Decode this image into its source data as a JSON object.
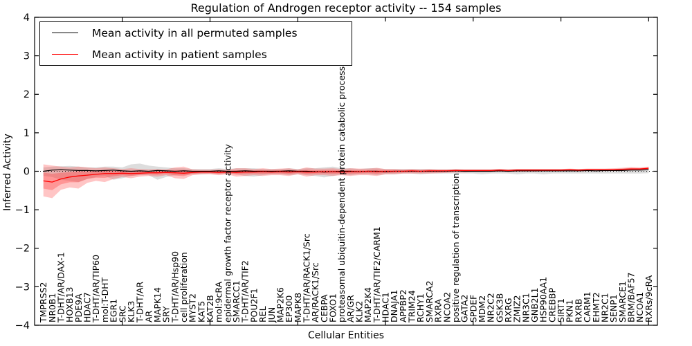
{
  "title": "Regulation of Androgen receptor activity -- 154 samples",
  "xlabel": "Cellular Entities",
  "ylabel": "Inferred Activity",
  "legend": [
    {
      "label": "Mean activity in all permuted samples",
      "color": "#000000"
    },
    {
      "label": "Mean activity in patient samples",
      "color": "#ff0000"
    }
  ],
  "y_ticks": [
    -4,
    -3,
    -2,
    -1,
    0,
    1,
    2,
    3,
    4
  ],
  "colors": {
    "permuted_line": "#000000",
    "permuted_band": "#aaaaaa",
    "patient_line": "#ff0000",
    "patient_band": "#ff4040",
    "zero_line": "#000000",
    "frame": "#000000"
  },
  "chart_data": {
    "type": "line",
    "title": "Regulation of Androgen receptor activity -- 154 samples",
    "xlabel": "Cellular Entities",
    "ylabel": "Inferred Activity",
    "ylim": [
      -4,
      4
    ],
    "grid": false,
    "legend_position": "upper left",
    "zero_reference_line": "dotted",
    "categories": [
      "TMPRSS2",
      "NR0B1",
      "T-DHT/AR/DAX-1",
      "HOXB13",
      "PDE9A",
      "HDAC7",
      "T-DHT/AR/TIP60",
      "mol:T-DHT",
      "EGR1",
      "SRC",
      "KLK3",
      "T-DHT/AR",
      "AR",
      "MAPK14",
      "SRY",
      "T-DHT/AR/Hsp90",
      "cell proliferation",
      "MYST2",
      "KAT5",
      "KAT2B",
      "mol:9cRA",
      "epidermal growth factor receptor activity",
      "SMARCC1",
      "T-DHT/AR/TIF2",
      "POU2F1",
      "REL",
      "JUN",
      "MAP2K6",
      "EP300",
      "MAPK8",
      "T-DHT/AR/RACK1/Src",
      "AR/RACK1/Src",
      "CEBPA",
      "FOXO1",
      "proteasomal ubiquitin-dependent protein catabolic process",
      "AR/GR",
      "KLK2",
      "MAP2K4",
      "T-DHT/AR/TIF2/CARM1",
      "HDAC1",
      "DNAJA1",
      "APPBP2",
      "TRIM24",
      "RCHY1",
      "SMARCA2",
      "RXRA",
      "NCOA2",
      "positive regulation of transcription",
      "GATA2",
      "SPDEF",
      "MDM2",
      "NR2C2",
      "GSK3B",
      "RXRG",
      "ZMIZ2",
      "NR3C1",
      "GNB2L1",
      "HSP90AA1",
      "CREBBP",
      "SIRT1",
      "PKN1",
      "RXRB",
      "CARM1",
      "EHMT2",
      "NR2C1",
      "SENP1",
      "SMARCE1",
      "BRM/BAF57",
      "NCOA1",
      "RXRs/9cRA"
    ],
    "series": [
      {
        "name": "Mean activity in all permuted samples",
        "color": "#000000",
        "values": [
          0,
          0.03,
          0.04,
          0.03,
          0.02,
          0.02,
          0.01,
          0.02,
          0.03,
          0.01,
          0,
          0.01,
          0,
          0.02,
          0.01,
          0,
          0.01,
          0,
          0,
          0,
          0.01,
          0,
          0,
          0.01,
          0,
          0,
          0,
          0,
          0.01,
          0,
          0,
          -0.01,
          -0.02,
          -0.01,
          0,
          0,
          -0.01,
          0,
          0,
          -0.01,
          0,
          0,
          0,
          0,
          0,
          0,
          0,
          0.01,
          0,
          0,
          0,
          0,
          0.01,
          0,
          0.01,
          0.01,
          0.01,
          0.01,
          0.01,
          0.01,
          0.01,
          0.01,
          0.02,
          0.01,
          0.02,
          0.02,
          0.02,
          0.03,
          0.03,
          0.04
        ],
        "band_low": [
          -0.12,
          -0.15,
          -0.22,
          -0.25,
          -0.28,
          -0.2,
          -0.15,
          -0.12,
          -0.22,
          -0.18,
          -0.12,
          -0.1,
          -0.1,
          -0.22,
          -0.15,
          -0.1,
          -0.1,
          -0.08,
          -0.08,
          -0.06,
          -0.08,
          -0.06,
          -0.08,
          -0.12,
          -0.14,
          -0.1,
          -0.08,
          -0.08,
          -0.1,
          -0.08,
          -0.1,
          -0.12,
          -0.16,
          -0.12,
          -0.08,
          -0.1,
          -0.08,
          -0.08,
          -0.1,
          -0.08,
          -0.08,
          -0.06,
          -0.06,
          -0.08,
          -0.06,
          -0.06,
          -0.06,
          -0.06,
          -0.06,
          -0.06,
          -0.08,
          -0.06,
          -0.06,
          -0.06,
          -0.08,
          -0.06,
          -0.06,
          -0.08,
          -0.06,
          -0.06,
          -0.06,
          -0.06,
          -0.06,
          -0.06,
          -0.06,
          -0.06,
          -0.06,
          -0.06,
          -0.06,
          -0.05
        ],
        "band_high": [
          0.1,
          0.12,
          0.13,
          0.14,
          0.12,
          0.1,
          0.1,
          0.12,
          0.12,
          0.1,
          0.18,
          0.2,
          0.15,
          0.12,
          0.1,
          0.08,
          0.08,
          0.06,
          0.06,
          0.06,
          0.08,
          0.06,
          0.08,
          0.08,
          0.08,
          0.06,
          0.06,
          0.06,
          0.08,
          0.06,
          0.08,
          0.08,
          0.1,
          0.12,
          0.08,
          0.08,
          0.06,
          0.08,
          0.08,
          0.06,
          0.06,
          0.06,
          0.06,
          0.06,
          0.06,
          0.05,
          0.05,
          0.06,
          0.05,
          0.05,
          0.05,
          0.05,
          0.06,
          0.05,
          0.06,
          0.06,
          0.06,
          0.06,
          0.06,
          0.06,
          0.06,
          0.06,
          0.06,
          0.06,
          0.06,
          0.06,
          0.07,
          0.07,
          0.07,
          0.08
        ]
      },
      {
        "name": "Mean activity in patient samples",
        "color": "#ff0000",
        "values": [
          -0.25,
          -0.28,
          -0.2,
          -0.15,
          -0.12,
          -0.1,
          -0.08,
          -0.06,
          -0.06,
          -0.05,
          -0.06,
          -0.05,
          -0.04,
          -0.04,
          -0.03,
          -0.04,
          -0.05,
          -0.03,
          -0.02,
          -0.02,
          -0.03,
          -0.02,
          -0.03,
          -0.02,
          -0.02,
          -0.01,
          -0.02,
          -0.01,
          -0.02,
          -0.01,
          -0.02,
          -0.02,
          -0.01,
          -0.01,
          -0.02,
          -0.01,
          -0.01,
          0,
          -0.01,
          0,
          0,
          0,
          0.01,
          0,
          0.01,
          0.01,
          0.01,
          0.02,
          0.02,
          0.02,
          0.02,
          0.02,
          0.03,
          0.02,
          0.03,
          0.03,
          0.03,
          0.03,
          0.03,
          0.03,
          0.04,
          0.03,
          0.04,
          0.04,
          0.04,
          0.04,
          0.05,
          0.06,
          0.06,
          0.08
        ],
        "band_low": [
          -0.65,
          -0.7,
          -0.48,
          -0.42,
          -0.45,
          -0.3,
          -0.25,
          -0.28,
          -0.2,
          -0.15,
          -0.18,
          -0.14,
          -0.12,
          -0.14,
          -0.1,
          -0.18,
          -0.2,
          -0.1,
          -0.08,
          -0.08,
          -0.1,
          -0.08,
          -0.14,
          -0.12,
          -0.1,
          -0.12,
          -0.1,
          -0.1,
          -0.12,
          -0.08,
          -0.14,
          -0.1,
          -0.1,
          -0.12,
          -0.1,
          -0.12,
          -0.1,
          -0.1,
          -0.12,
          -0.08,
          -0.08,
          -0.06,
          -0.06,
          -0.06,
          -0.06,
          -0.05,
          -0.04,
          -0.03,
          -0.03,
          -0.02,
          -0.02,
          -0.02,
          -0.01,
          -0.02,
          -0.01,
          -0.01,
          -0.01,
          0,
          0,
          0,
          0,
          0,
          0.01,
          0.01,
          0.01,
          0.01,
          0.02,
          0.02,
          0.03,
          0.04
        ],
        "band_high": [
          0.18,
          0.15,
          0.12,
          0.1,
          0.12,
          0.1,
          0.08,
          0.1,
          0.08,
          0.06,
          0.08,
          0.06,
          0.05,
          0.06,
          0.05,
          0.1,
          0.12,
          0.05,
          0.04,
          0.04,
          0.05,
          0.04,
          0.08,
          0.08,
          0.06,
          0.08,
          0.06,
          0.07,
          0.08,
          0.05,
          0.1,
          0.07,
          0.07,
          0.08,
          0.06,
          0.08,
          0.07,
          0.07,
          0.09,
          0.06,
          0.06,
          0.05,
          0.06,
          0.05,
          0.06,
          0.05,
          0.05,
          0.06,
          0.05,
          0.05,
          0.05,
          0.05,
          0.06,
          0.05,
          0.06,
          0.06,
          0.06,
          0.06,
          0.06,
          0.06,
          0.07,
          0.06,
          0.07,
          0.07,
          0.07,
          0.08,
          0.09,
          0.11,
          0.1,
          0.12
        ]
      }
    ]
  }
}
